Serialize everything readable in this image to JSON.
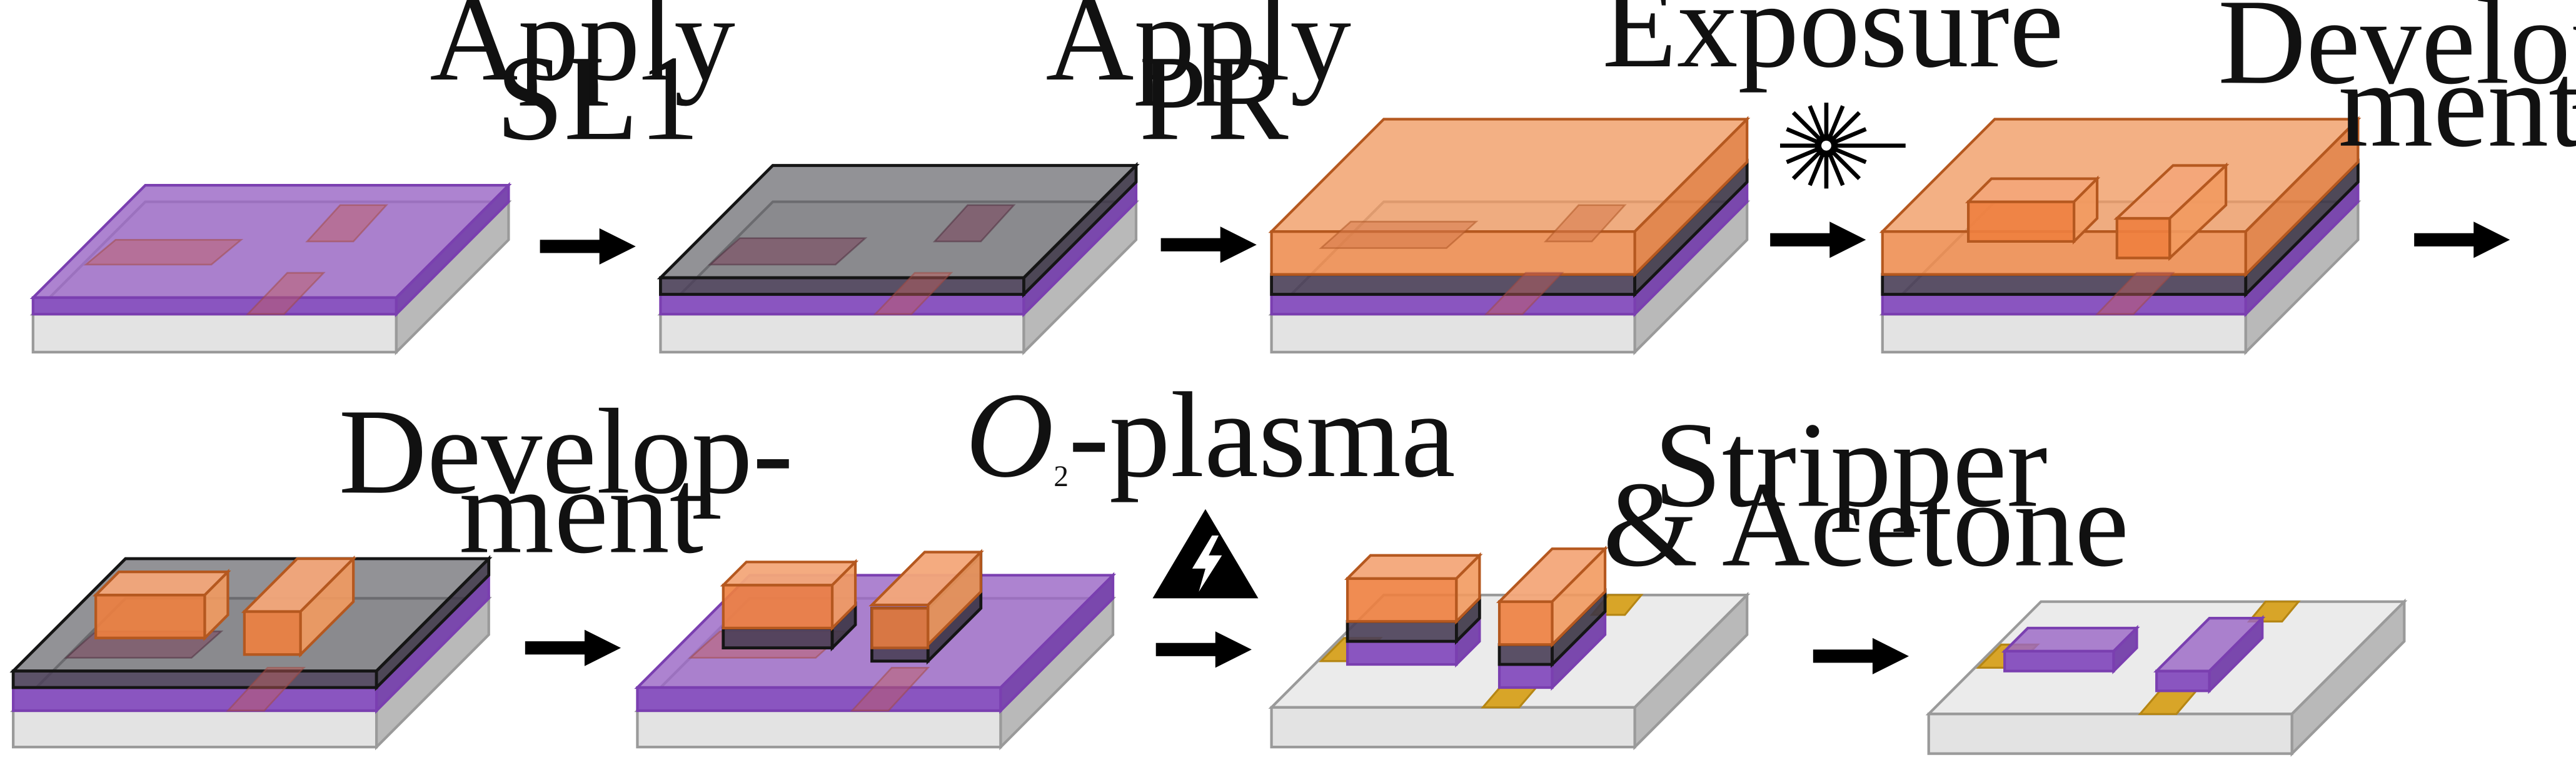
{
  "colors": {
    "substrate_top": "#ebebeb",
    "substrate_front": "#e3e3e3",
    "substrate_side": "#b9b9b9",
    "substrate_edge": "#9a9a9a",
    "purple": "#9b68c6",
    "purple_edge": "#7a3fb0",
    "purple_band": "#8a55c0",
    "sl1": "#4f4f55",
    "sl1_edge": "#151515",
    "orange": "#f09a62",
    "orange_edge": "#b5581f",
    "gold": "#d8a528",
    "arrow": "#000000"
  },
  "icons": {
    "laser": "laser-starburst-icon",
    "plasma": "high-voltage-warning-icon"
  },
  "steps": [
    {
      "label_lines": [
        "Apply",
        "SL1"
      ]
    },
    {
      "label_lines": [
        "Apply",
        "PR"
      ]
    },
    {
      "label_lines": [
        "Exposure"
      ]
    },
    {
      "label_lines": [
        "Develop-",
        "ment"
      ]
    },
    {
      "label_lines": [
        "Develop-",
        "ment"
      ]
    },
    {
      "label_lines": [
        "-plasma"
      ],
      "formula": {
        "symbol": "O",
        "subscript": "2"
      }
    },
    {
      "label_lines": [
        "Stripper",
        "& Acetone"
      ]
    }
  ]
}
